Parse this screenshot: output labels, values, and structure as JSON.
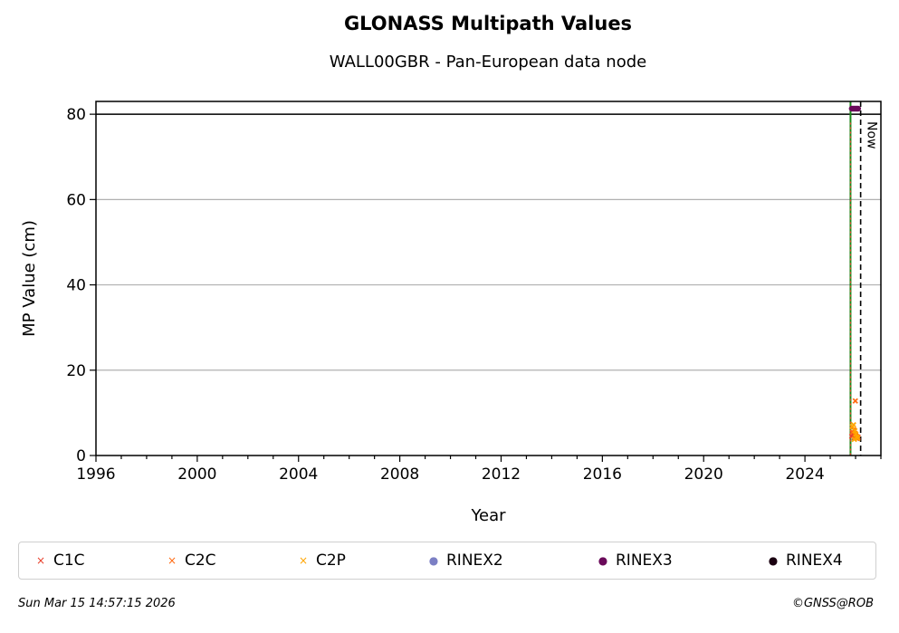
{
  "chart_data": {
    "type": "scatter",
    "title": "GLONASS Multipath Values",
    "subtitle": "WALL00GBR - Pan-European data node",
    "xlabel": "Year",
    "ylabel": "MP Value (cm)",
    "xlim": [
      1996,
      2027
    ],
    "ylim": [
      0,
      83
    ],
    "x_ticks": [
      1996,
      2000,
      2004,
      2008,
      2012,
      2016,
      2020,
      2024
    ],
    "y_ticks": [
      0,
      20,
      40,
      60,
      80
    ],
    "grid": "y",
    "legend_position": "bottom",
    "reference_lines": {
      "hline_value": 80,
      "green_vline_x": 2025.8,
      "now_x": 2026.2,
      "now_label": "Now"
    },
    "series": [
      {
        "name": "C1C",
        "marker": "x",
        "color": "#e8412c",
        "x": [
          2025.85,
          2025.9,
          2025.95,
          2026.0,
          2026.05,
          2026.1
        ],
        "y": [
          4.5,
          5.0,
          4.2,
          4.8,
          4.0,
          4.3
        ]
      },
      {
        "name": "C2C",
        "marker": "x",
        "color": "#ff6a13",
        "x": [
          2025.88,
          2025.93,
          2025.98,
          2026.02,
          2026.07,
          2025.99
        ],
        "y": [
          5.5,
          6.0,
          5.2,
          4.6,
          4.1,
          12.8
        ]
      },
      {
        "name": "C2P",
        "marker": "x",
        "color": "#ffa500",
        "x": [
          2025.87,
          2025.92,
          2025.97,
          2026.01,
          2026.06,
          2026.09,
          2025.95
        ],
        "y": [
          6.8,
          7.2,
          5.8,
          5.0,
          4.4,
          4.0,
          3.8
        ]
      },
      {
        "name": "RINEX2",
        "marker": "o",
        "color": "#7b7fc4",
        "x": [],
        "y": []
      },
      {
        "name": "RINEX3",
        "marker": "o",
        "color": "#6a0a5a",
        "x": [
          2025.85,
          2025.9,
          2025.95,
          2026.0,
          2026.05,
          2026.1
        ],
        "y": [
          81.3,
          81.3,
          81.3,
          81.3,
          81.3,
          81.3
        ]
      },
      {
        "name": "RINEX4",
        "marker": "o",
        "color": "#1a0010",
        "x": [],
        "y": []
      }
    ]
  },
  "legend": {
    "items": [
      {
        "label": "C1C",
        "symbol": "×",
        "color": "#e8412c"
      },
      {
        "label": "C2C",
        "symbol": "×",
        "color": "#ff6a13"
      },
      {
        "label": "C2P",
        "symbol": "×",
        "color": "#ffa500"
      },
      {
        "label": "RINEX2",
        "symbol": "●",
        "color": "#7b7fc4"
      },
      {
        "label": "RINEX3",
        "symbol": "●",
        "color": "#6a0a5a"
      },
      {
        "label": "RINEX4",
        "symbol": "●",
        "color": "#1a0010"
      }
    ]
  },
  "footer": {
    "timestamp": "Sun Mar 15 14:57:15 2026",
    "credit": "©GNSS@ROB"
  }
}
